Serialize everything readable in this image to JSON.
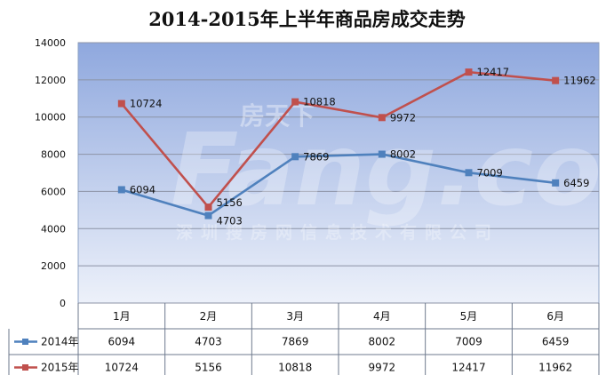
{
  "chart_data": {
    "type": "line",
    "title": "2014-2015年上半年商品房成交走势",
    "categories": [
      "1月",
      "2月",
      "3月",
      "4月",
      "5月",
      "6月"
    ],
    "ylim": [
      0,
      14000
    ],
    "y_ticks": [
      0,
      2000,
      4000,
      6000,
      8000,
      10000,
      12000,
      14000
    ],
    "grid": true,
    "legend_placement": "data-table-left",
    "series": [
      {
        "name": "2014年",
        "color": "#4F81BD",
        "values": [
          6094,
          4703,
          7869,
          8002,
          7009,
          6459
        ]
      },
      {
        "name": "2015年",
        "color": "#C0504D",
        "values": [
          10724,
          5156,
          10818,
          9972,
          12417,
          11962
        ]
      }
    ],
    "watermark": {
      "brand": "房天下",
      "main": "Fang.com",
      "sub": "深圳搜房网信息技术有限公司"
    }
  }
}
